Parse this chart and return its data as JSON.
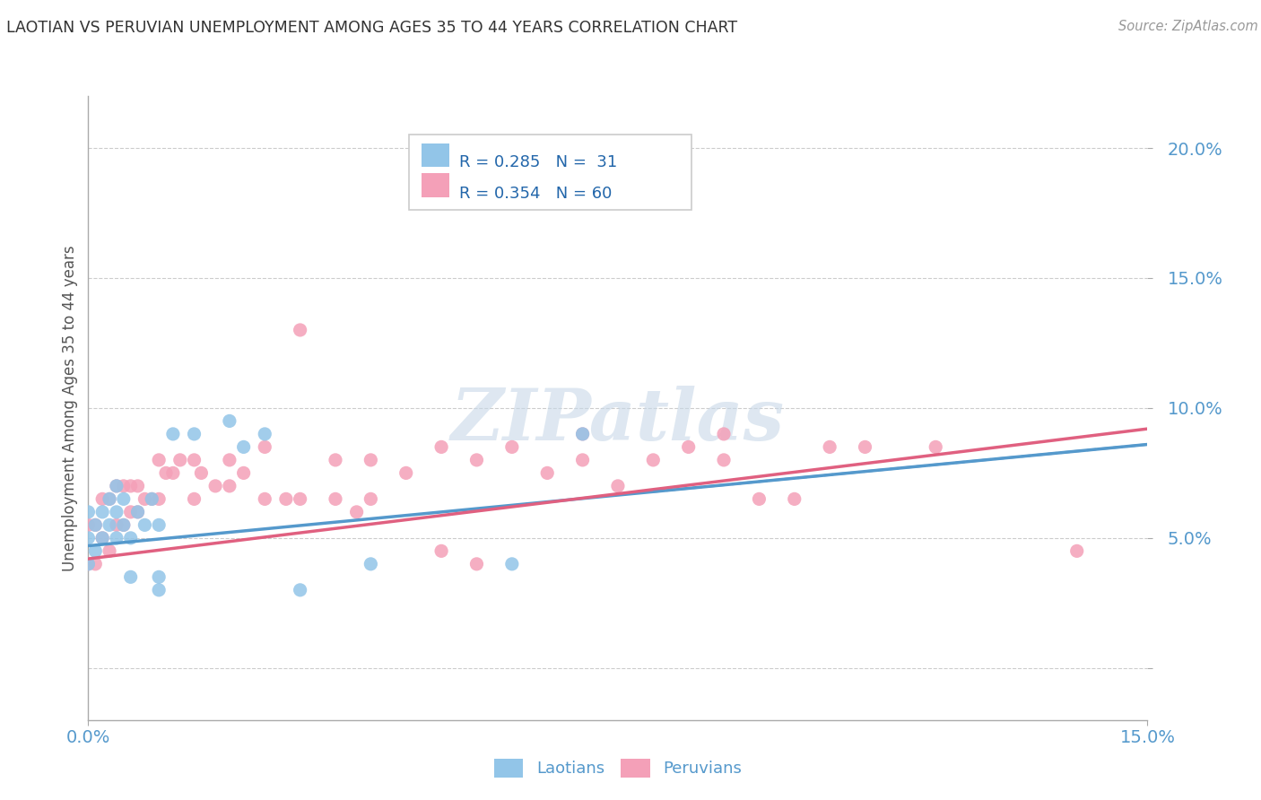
{
  "title": "LAOTIAN VS PERUVIAN UNEMPLOYMENT AMONG AGES 35 TO 44 YEARS CORRELATION CHART",
  "source": "Source: ZipAtlas.com",
  "ylabel": "Unemployment Among Ages 35 to 44 years",
  "xlim": [
    0.0,
    0.15
  ],
  "ylim": [
    -0.02,
    0.22
  ],
  "ytick_positions": [
    0.0,
    0.05,
    0.1,
    0.15,
    0.2
  ],
  "ytick_labels": [
    "",
    "5.0%",
    "10.0%",
    "15.0%",
    "20.0%"
  ],
  "legend_line1": "R = 0.285   N =  31",
  "legend_line2": "R = 0.354   N = 60",
  "laotian_color": "#92c5e8",
  "peruvian_color": "#f4a0b8",
  "laotian_line_color": "#5599cc",
  "peruvian_line_color": "#e06080",
  "background_color": "#ffffff",
  "watermark_color": "#c8d8e8",
  "laotian_x": [
    0.0,
    0.0,
    0.0,
    0.001,
    0.001,
    0.002,
    0.002,
    0.003,
    0.003,
    0.004,
    0.004,
    0.004,
    0.005,
    0.005,
    0.006,
    0.006,
    0.007,
    0.008,
    0.009,
    0.01,
    0.01,
    0.01,
    0.012,
    0.015,
    0.02,
    0.022,
    0.025,
    0.03,
    0.04,
    0.06,
    0.07
  ],
  "laotian_y": [
    0.04,
    0.05,
    0.06,
    0.045,
    0.055,
    0.05,
    0.06,
    0.055,
    0.065,
    0.05,
    0.06,
    0.07,
    0.055,
    0.065,
    0.05,
    0.035,
    0.06,
    0.055,
    0.065,
    0.055,
    0.035,
    0.03,
    0.09,
    0.09,
    0.095,
    0.085,
    0.09,
    0.03,
    0.04,
    0.04,
    0.09
  ],
  "peruvian_x": [
    0.0,
    0.0,
    0.001,
    0.001,
    0.002,
    0.002,
    0.003,
    0.003,
    0.004,
    0.004,
    0.005,
    0.005,
    0.006,
    0.006,
    0.007,
    0.007,
    0.008,
    0.009,
    0.01,
    0.01,
    0.011,
    0.012,
    0.013,
    0.015,
    0.015,
    0.016,
    0.018,
    0.02,
    0.02,
    0.022,
    0.025,
    0.025,
    0.028,
    0.03,
    0.03,
    0.035,
    0.035,
    0.038,
    0.04,
    0.04,
    0.045,
    0.05,
    0.05,
    0.055,
    0.055,
    0.06,
    0.065,
    0.07,
    0.07,
    0.075,
    0.08,
    0.085,
    0.09,
    0.09,
    0.095,
    0.1,
    0.105,
    0.11,
    0.12,
    0.14
  ],
  "peruvian_y": [
    0.04,
    0.055,
    0.04,
    0.055,
    0.05,
    0.065,
    0.045,
    0.065,
    0.055,
    0.07,
    0.055,
    0.07,
    0.06,
    0.07,
    0.06,
    0.07,
    0.065,
    0.065,
    0.065,
    0.08,
    0.075,
    0.075,
    0.08,
    0.065,
    0.08,
    0.075,
    0.07,
    0.07,
    0.08,
    0.075,
    0.065,
    0.085,
    0.065,
    0.13,
    0.065,
    0.065,
    0.08,
    0.06,
    0.065,
    0.08,
    0.075,
    0.085,
    0.045,
    0.08,
    0.04,
    0.085,
    0.075,
    0.08,
    0.09,
    0.07,
    0.08,
    0.085,
    0.08,
    0.09,
    0.065,
    0.065,
    0.085,
    0.085,
    0.085,
    0.045
  ],
  "laotian_trendline_x0": 0.0,
  "laotian_trendline_x1": 0.15,
  "laotian_trendline_y0": 0.047,
  "laotian_trendline_y1": 0.086,
  "peruvian_trendline_x0": 0.0,
  "peruvian_trendline_x1": 0.15,
  "peruvian_trendline_y0": 0.042,
  "peruvian_trendline_y1": 0.092
}
